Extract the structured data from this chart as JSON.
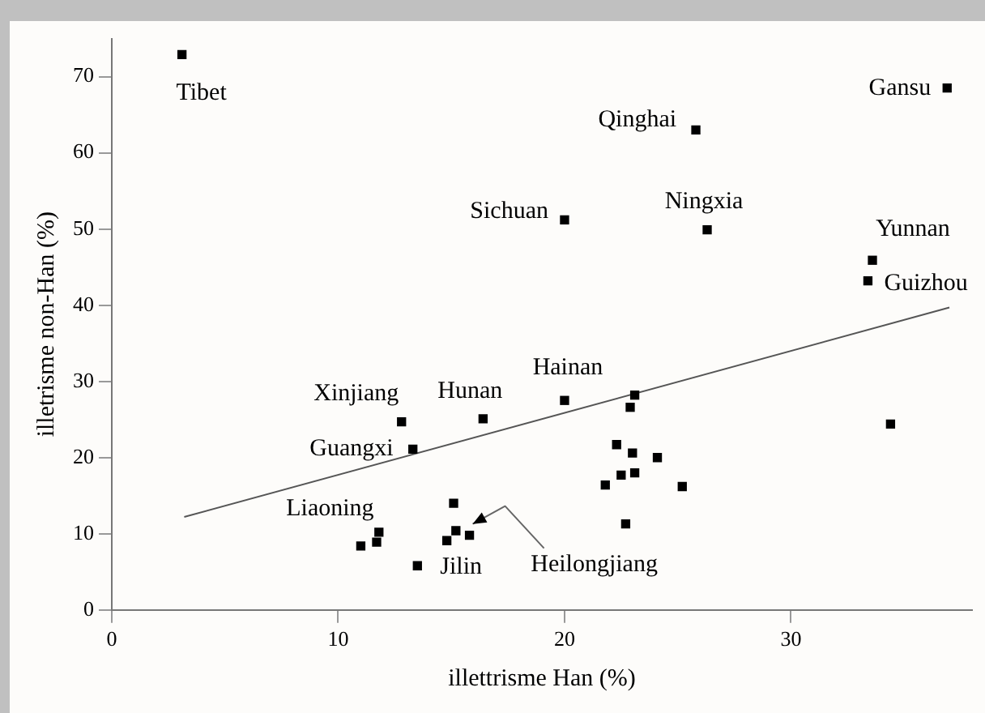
{
  "chart_data": {
    "type": "scatter",
    "xlabel": "illettrisme Han (%)",
    "ylabel": "illetrisme non-Han (%)",
    "xlim": [
      0,
      38
    ],
    "ylim": [
      0,
      75
    ],
    "xticks": [
      0,
      10,
      20,
      30
    ],
    "yticks": [
      0,
      10,
      20,
      30,
      40,
      50,
      60,
      70
    ],
    "grid": false,
    "legend": false,
    "series": [
      {
        "marker": "square",
        "color": "#000000",
        "x": [
          3.1,
          36.9,
          25.8,
          20.0,
          26.3,
          33.6,
          33.4,
          20.0,
          12.8,
          16.4,
          13.3,
          34.4,
          23.1,
          22.9,
          22.3,
          23.0,
          24.1,
          22.5,
          23.1,
          21.8,
          25.2,
          22.7,
          15.1,
          11.8,
          11.7,
          11.0,
          13.5,
          15.2,
          15.8,
          14.8
        ],
        "values": [
          72.9,
          68.5,
          63.0,
          51.2,
          49.9,
          45.9,
          43.2,
          27.5,
          24.7,
          25.1,
          21.1,
          24.4,
          28.2,
          26.6,
          21.7,
          20.6,
          20.0,
          17.7,
          18.0,
          16.4,
          16.2,
          11.3,
          14.0,
          10.2,
          8.9,
          8.4,
          5.8,
          10.4,
          9.8,
          9.1
        ]
      },
      {
        "type": "line",
        "color": "#555555",
        "x": [
          3.2,
          37.0
        ],
        "values": [
          12.2,
          39.7
        ]
      }
    ],
    "annotations": [
      {
        "text": "Tibet",
        "x": 3.1,
        "y": 72.9
      },
      {
        "text": "Gansu",
        "x": 36.9,
        "y": 68.5
      },
      {
        "text": "Qinghai",
        "x": 25.8,
        "y": 63.0
      },
      {
        "text": "Sichuan",
        "x": 20.0,
        "y": 51.2
      },
      {
        "text": "Ningxia",
        "x": 26.3,
        "y": 49.9
      },
      {
        "text": "Yunnan",
        "x": 33.6,
        "y": 45.9
      },
      {
        "text": "Guizhou",
        "x": 33.4,
        "y": 43.2
      },
      {
        "text": "Hainan",
        "x": 20.0,
        "y": 27.5
      },
      {
        "text": "Xinjiang",
        "x": 12.8,
        "y": 24.7
      },
      {
        "text": "Hunan",
        "x": 16.4,
        "y": 25.1
      },
      {
        "text": "Guangxi",
        "x": 13.3,
        "y": 21.1
      },
      {
        "text": "Liaoning",
        "x": 11.0,
        "y": 8.4
      },
      {
        "text": "Jilin",
        "x": 13.5,
        "y": 5.8
      },
      {
        "text": "Heilongjiang",
        "x": 15.8,
        "y": 9.8
      }
    ]
  }
}
